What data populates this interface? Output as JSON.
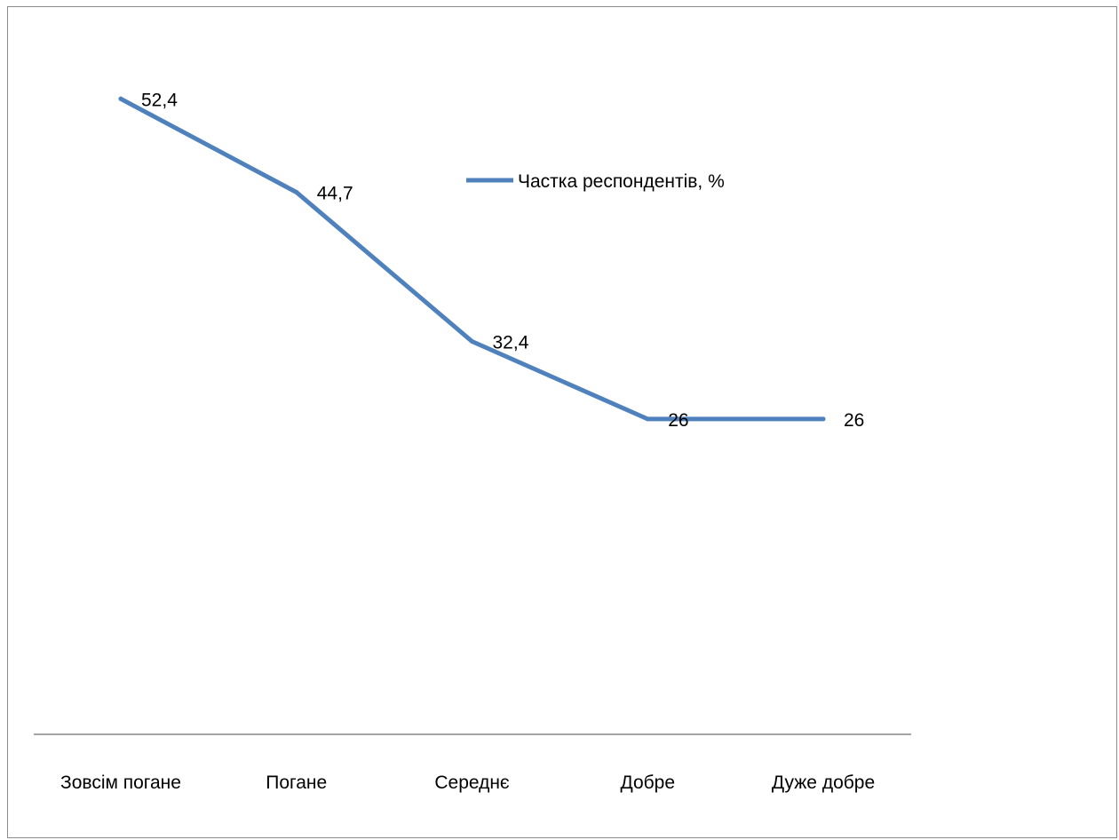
{
  "chart_data": {
    "type": "line",
    "categories": [
      "Зовсім погане",
      "Погане",
      "Середнє",
      "Добре",
      "Дуже добре"
    ],
    "series": [
      {
        "name": "Частка  респондентів, %",
        "values": [
          52.4,
          44.7,
          32.4,
          26,
          26
        ],
        "labels": [
          "52,4",
          "44,7",
          "32,4",
          "26",
          "26"
        ],
        "color": "#4f81bd"
      }
    ],
    "title": "",
    "xlabel": "",
    "ylabel": "",
    "ylim": [
      0,
      60
    ],
    "grid": false,
    "legend_position": "top-center"
  },
  "colors": {
    "series_line": "#4f81bd",
    "axis_line": "#868686",
    "frame": "#8c8c8c"
  }
}
